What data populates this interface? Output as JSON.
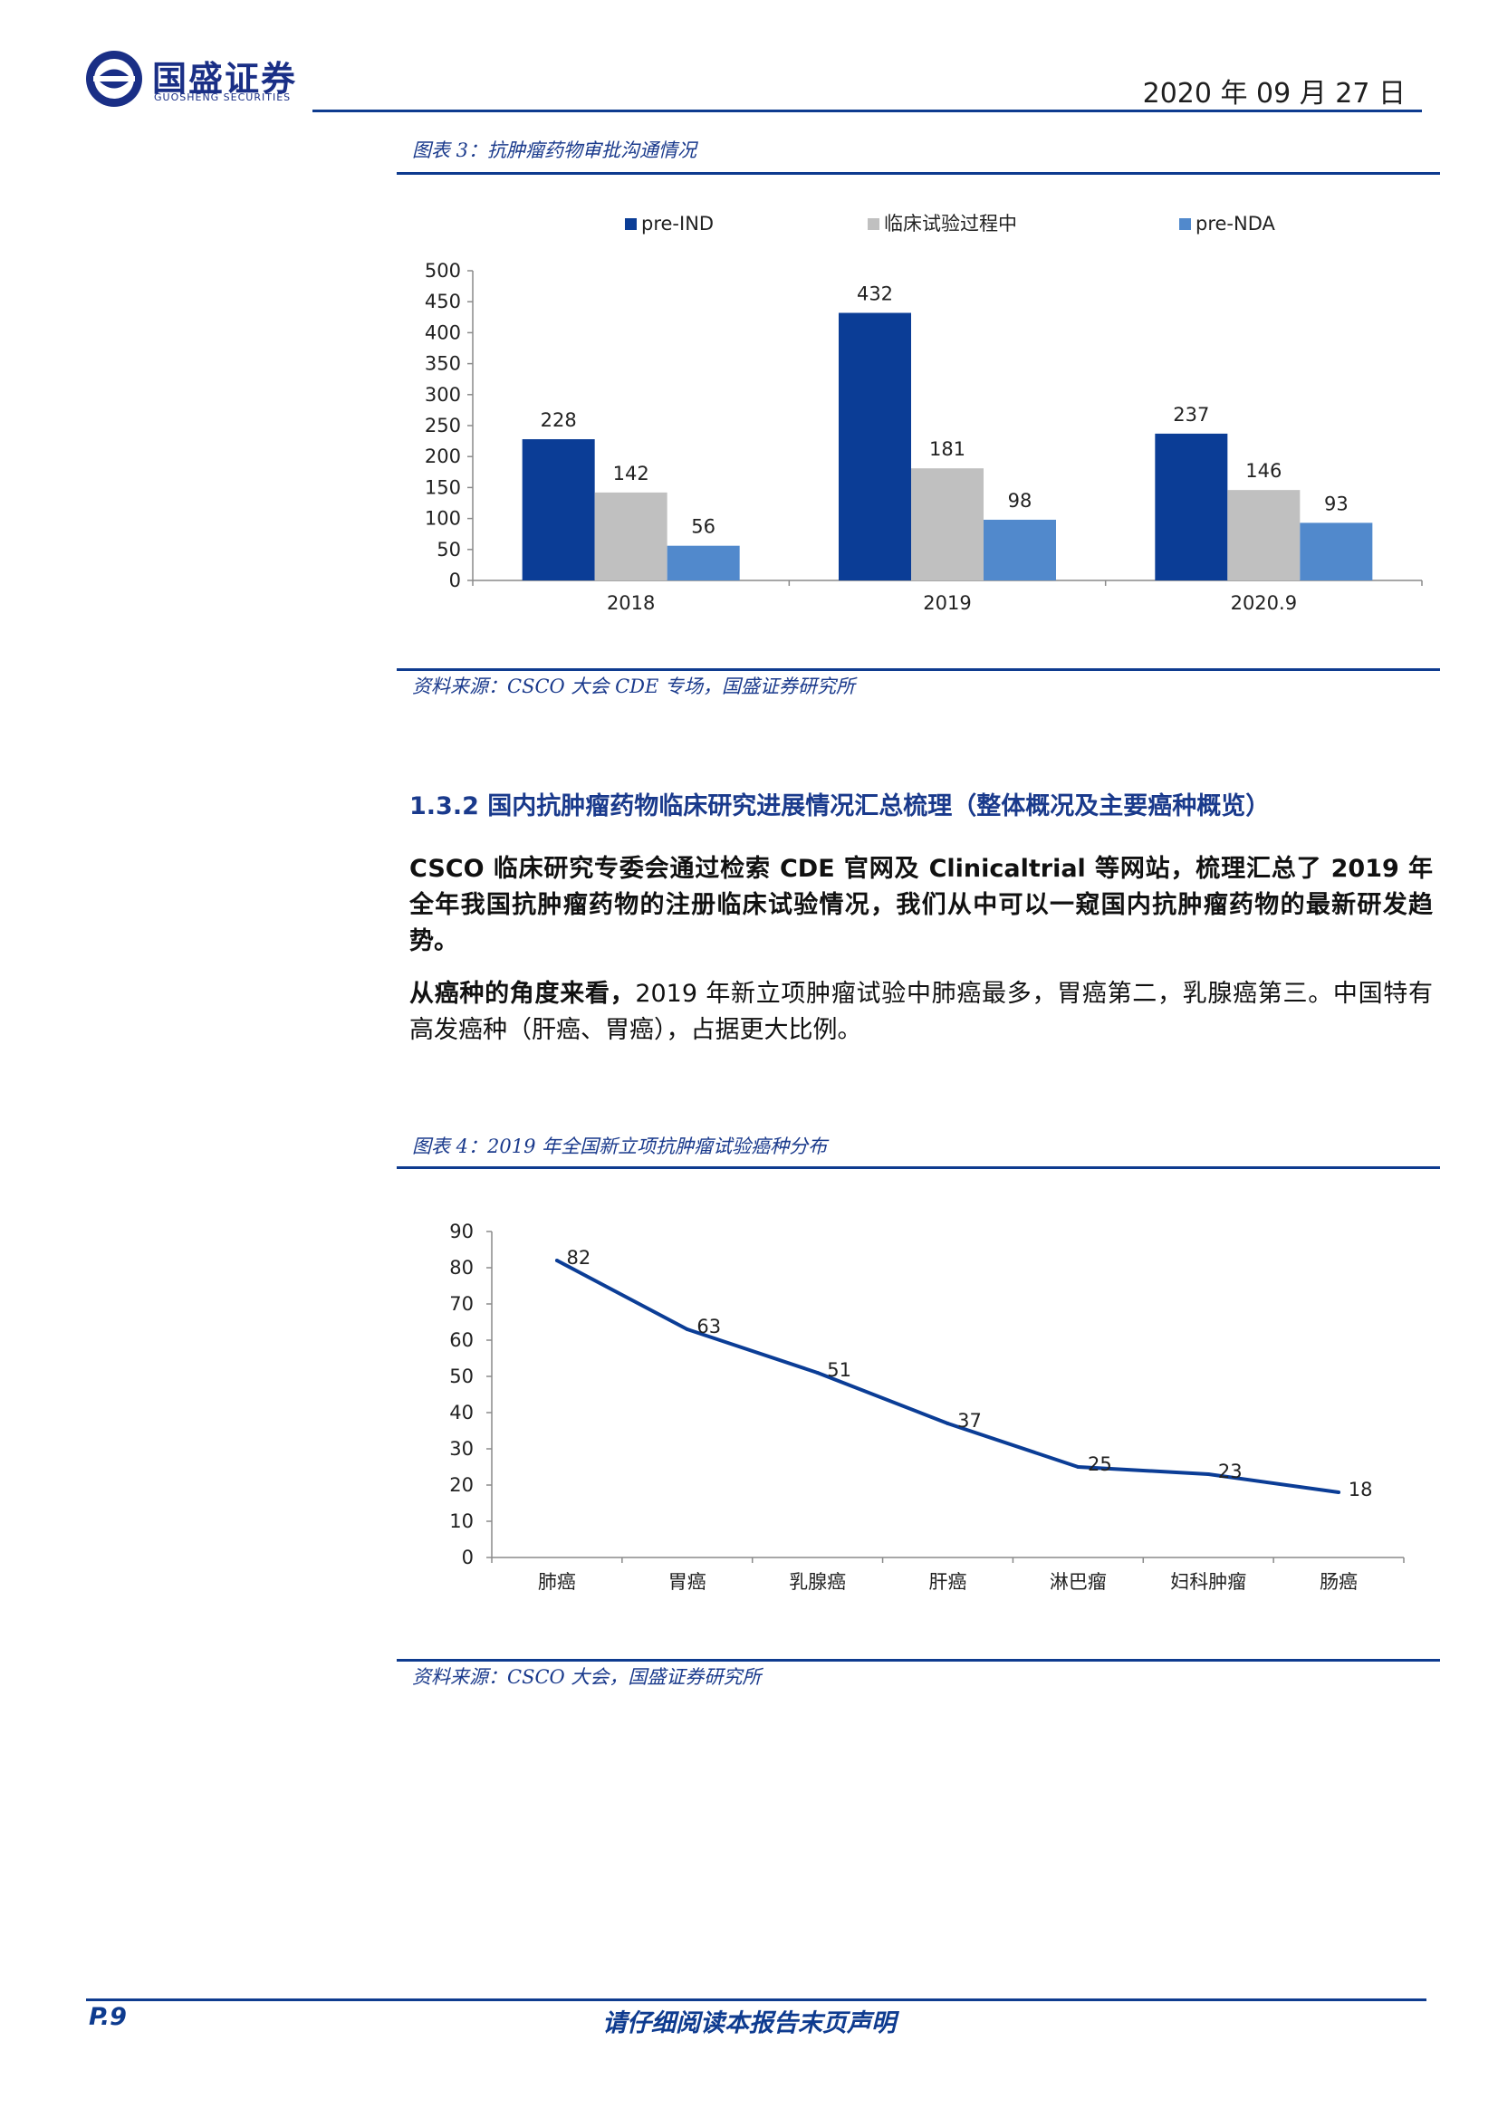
{
  "header": {
    "logo_cn": "国盛证券",
    "logo_en": "GUOSHENG SECURITIES",
    "date": "2020 年 09 月 27 日",
    "brand_color": "#1a2f86"
  },
  "figure3": {
    "caption": "图表 3：抗肿瘤药物审批沟通情况",
    "source": "资料来源：CSCO 大会 CDE 专场，国盛证券研究所"
  },
  "section": {
    "title": "1.3.2 国内抗肿瘤药物临床研究进展情况汇总梳理（整体概况及主要癌种概览）",
    "para1": "CSCO 临床研究专委会通过检索 CDE 官网及 Clinicaltrial 等网站，梳理汇总了 2019 年全年我国抗肿瘤药物的注册临床试验情况，我们从中可以一窥国内抗肿瘤药物的最新研发趋势。",
    "para2_lead": "从癌种的角度来看，",
    "para2_rest": "2019 年新立项肿瘤试验中肺癌最多，胃癌第二，乳腺癌第三。中国特有高发癌种（肝癌、胃癌），占据更大比例。"
  },
  "figure4": {
    "caption": "图表 4：2019 年全国新立项抗肿瘤试验癌种分布",
    "source": "资料来源：CSCO 大会，国盛证券研究所"
  },
  "footer": {
    "page": "P.9",
    "note": "请仔细阅读本报告末页声明"
  },
  "chart_data": [
    {
      "type": "bar",
      "title": "抗肿瘤药物审批沟通情况",
      "categories": [
        "2018",
        "2019",
        "2020.9"
      ],
      "series": [
        {
          "name": "pre-IND",
          "values": [
            228,
            432,
            237
          ],
          "color": "#0b3d96"
        },
        {
          "name": "临床试验过程中",
          "values": [
            142,
            181,
            146
          ],
          "color": "#c0c0c0"
        },
        {
          "name": "pre-NDA",
          "values": [
            56,
            98,
            93
          ],
          "color": "#5189cc"
        }
      ],
      "yticks": [
        "0",
        "50",
        "100",
        "150",
        "200",
        "250",
        "300",
        "350",
        "400",
        "450",
        "500"
      ],
      "ylim": [
        0,
        500
      ],
      "legend": "top"
    },
    {
      "type": "line",
      "title": "2019 年全国新立项抗肿瘤试验癌种分布",
      "categories": [
        "肺癌",
        "胃癌",
        "乳腺癌",
        "肝癌",
        "淋巴瘤",
        "妇科肿瘤",
        "肠癌"
      ],
      "values": [
        82,
        63,
        51,
        37,
        25,
        23,
        18
      ],
      "color": "#0b3d96",
      "yticks": [
        "0",
        "10",
        "20",
        "30",
        "40",
        "50",
        "60",
        "70",
        "80",
        "90"
      ],
      "ylim": [
        0,
        90
      ]
    }
  ]
}
